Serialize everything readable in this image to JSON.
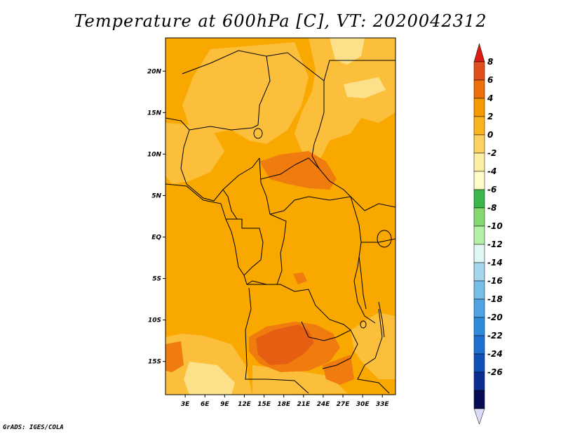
{
  "title": "Temperature at 600hPa [C], VT: 2020042312",
  "credit": "GrADS: IGES/COLA",
  "map": {
    "lat_range": [
      -19,
      24
    ],
    "lon_range": [
      0,
      35
    ],
    "lat_labels": [
      "20N",
      "15N",
      "10N",
      "5N",
      "EQ",
      "5S",
      "10S",
      "15S"
    ],
    "lat_values": [
      20,
      15,
      10,
      5,
      0,
      -5,
      -10,
      -15
    ],
    "lon_labels": [
      "3E",
      "6E",
      "9E",
      "12E",
      "15E",
      "18E",
      "21E",
      "24E",
      "27E",
      "30E",
      "33E"
    ],
    "lon_values": [
      3,
      6,
      9,
      12,
      15,
      18,
      21,
      24,
      27,
      30,
      33
    ]
  },
  "colorbar": {
    "labels": [
      "8",
      "6",
      "4",
      "2",
      "0",
      "-2",
      "-4",
      "-6",
      "-8",
      "-10",
      "-12",
      "-14",
      "-16",
      "-18",
      "-20",
      "-22",
      "-24",
      "-26"
    ],
    "colors": [
      "#e0501e",
      "#ed6f0a",
      "#f79a00",
      "#f9b420",
      "#fcd061",
      "#fdeea6",
      "#fffcc8",
      "#3cb54a",
      "#82d972",
      "#b4f0a8",
      "#dff6f4",
      "#a6d5ee",
      "#78bde8",
      "#4ea4e2",
      "#2e8ddb",
      "#1d6fd0",
      "#1050b7",
      "#0a2d8f",
      "#070c52"
    ],
    "top_tip_color": "#d81c14",
    "bottom_tip_color": "#dcdcf8"
  },
  "field_colors": {
    "base": "#f9a800",
    "warm_patch": "#f07c10",
    "hot_patch": "#e65e12",
    "cool_patch": "#fbbf3c",
    "cooler_patch": "#fde08a",
    "boundary": "#000000"
  }
}
